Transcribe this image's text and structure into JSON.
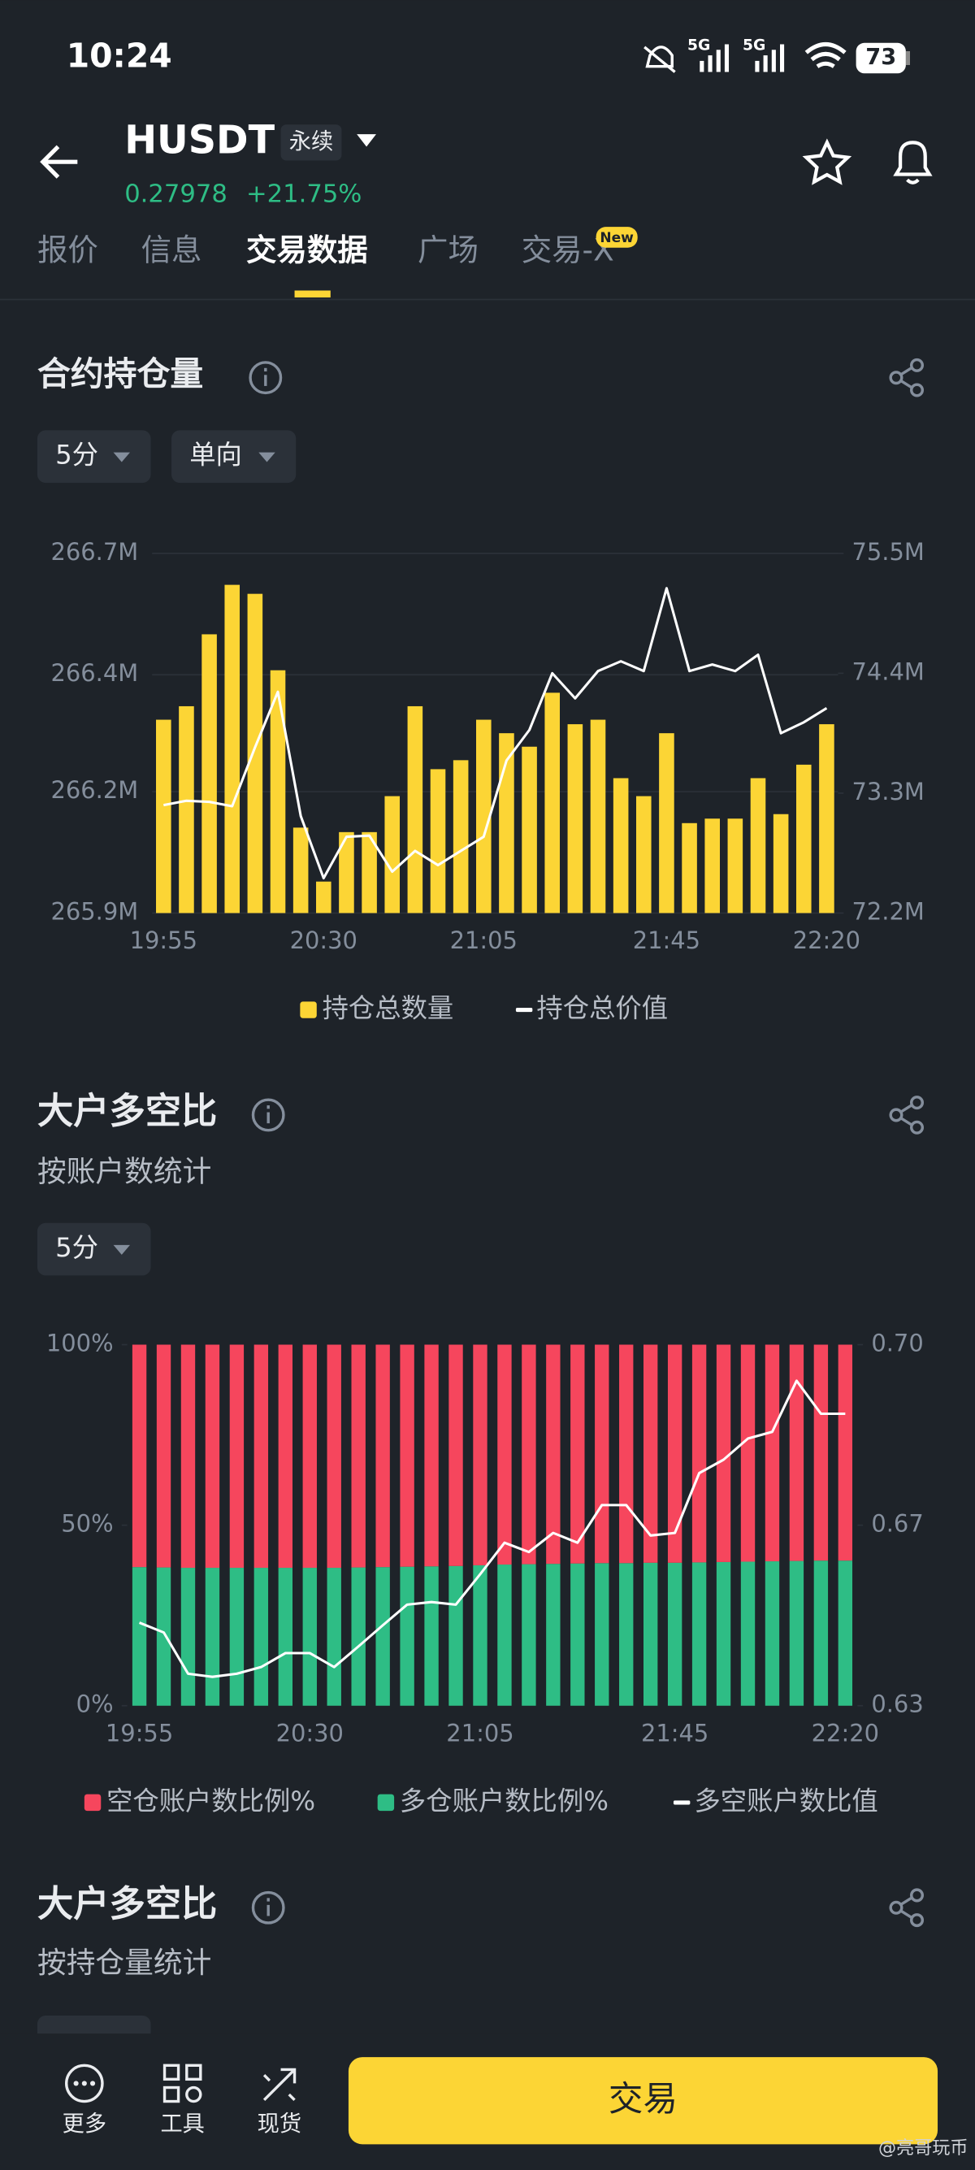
{
  "status_bar": {
    "time": "10:24",
    "network_1": "5G",
    "network_2": "5G",
    "battery": "73"
  },
  "header": {
    "symbol": "HUSDT",
    "contract_type": "永续",
    "price": "0.27978",
    "change": "+21.75%"
  },
  "tabs": [
    "报价",
    "信息",
    "交易数据",
    "广场",
    "交易-X"
  ],
  "tab_badge": "New",
  "open_interest": {
    "title": "合约持仓量",
    "filters": [
      "5分",
      "单向"
    ],
    "chart_data": {
      "type": "bar_line",
      "categories": [
        "19:55",
        null,
        null,
        null,
        null,
        null,
        null,
        "20:30",
        null,
        null,
        null,
        null,
        null,
        null,
        "21:05",
        null,
        null,
        null,
        null,
        null,
        null,
        null,
        "21:45",
        null,
        null,
        null,
        null,
        null,
        null,
        "22:20"
      ],
      "series": [
        {
          "name": "持仓总数量",
          "color": "#fcd535",
          "type": "bar",
          "values": [
            266.33,
            266.36,
            266.52,
            266.63,
            266.61,
            266.44,
            266.09,
            265.97,
            266.08,
            266.08,
            266.16,
            266.36,
            266.22,
            266.24,
            266.33,
            266.3,
            266.27,
            266.39,
            266.32,
            266.33,
            266.2,
            266.16,
            266.3,
            266.1,
            266.11,
            266.11,
            266.2,
            266.12,
            266.23,
            266.32
          ]
        },
        {
          "name": "持仓总价值",
          "color": "#ffffff",
          "type": "line",
          "axis": "y2",
          "values": [
            73.19,
            73.23,
            73.22,
            73.18,
            73.72,
            74.23,
            73.09,
            72.52,
            72.9,
            72.91,
            72.58,
            72.77,
            72.64,
            72.77,
            72.9,
            73.6,
            73.88,
            74.4,
            74.17,
            74.42,
            74.51,
            74.42,
            75.18,
            74.42,
            74.48,
            74.42,
            74.57,
            73.85,
            73.95,
            74.08
          ]
        }
      ],
      "ylim": [
        265.9,
        266.7
      ],
      "yticks": [
        {
          "value": 265.9,
          "label": "265.9M"
        },
        {
          "value": 266.17,
          "label": "266.2M"
        },
        {
          "value": 266.43,
          "label": "266.4M"
        },
        {
          "value": 266.7,
          "label": "266.7M"
        }
      ],
      "y2lim": [
        72.2,
        75.5
      ],
      "y2ticks": [
        {
          "value": 72.2,
          "label": "72.2M"
        },
        {
          "value": 73.3,
          "label": "73.3M"
        },
        {
          "value": 74.4,
          "label": "74.4M"
        },
        {
          "value": 75.5,
          "label": "75.5M"
        }
      ],
      "grid": true
    }
  },
  "long_short_accounts": {
    "title": "大户多空比",
    "subtitle": "按账户数统计",
    "filters": [
      "5分"
    ],
    "chart_data": {
      "type": "stacked_bar_line",
      "categories": [
        "19:55",
        null,
        null,
        null,
        null,
        null,
        null,
        "20:30",
        null,
        null,
        null,
        null,
        null,
        null,
        "21:05",
        null,
        null,
        null,
        null,
        null,
        null,
        null,
        "21:45",
        null,
        null,
        null,
        null,
        null,
        null,
        "22:20"
      ],
      "series": [
        {
          "name": "空仓账户数比例%",
          "color": "#f6465d",
          "type": "bar",
          "values": [
            61.6,
            61.7,
            61.8,
            61.8,
            61.8,
            61.8,
            61.8,
            61.8,
            61.8,
            61.7,
            61.6,
            61.5,
            61.4,
            61.3,
            61.1,
            60.9,
            60.8,
            60.7,
            60.6,
            60.5,
            60.5,
            60.4,
            60.4,
            60.3,
            60.2,
            60.1,
            60.0,
            59.9,
            59.8,
            59.8
          ]
        },
        {
          "name": "多仓账户数比例%",
          "color": "#2ebd85",
          "type": "bar",
          "values": [
            38.4,
            38.3,
            38.2,
            38.2,
            38.2,
            38.2,
            38.2,
            38.2,
            38.2,
            38.3,
            38.4,
            38.5,
            38.6,
            38.7,
            38.9,
            39.1,
            39.2,
            39.3,
            39.4,
            39.5,
            39.5,
            39.6,
            39.6,
            39.7,
            39.8,
            39.9,
            40.0,
            40.1,
            40.2,
            40.2
          ]
        },
        {
          "name": "多空账户数比值",
          "color": "#ffffff",
          "type": "line",
          "axis": "y2",
          "values": [
            0.6461,
            0.6442,
            0.6362,
            0.6356,
            0.6362,
            0.6375,
            0.6402,
            0.6402,
            0.6375,
            0.6415,
            0.6456,
            0.6496,
            0.6501,
            0.6496,
            0.6555,
            0.6616,
            0.6598,
            0.6635,
            0.6616,
            0.6689,
            0.6689,
            0.663,
            0.6635,
            0.6751,
            0.6777,
            0.6818,
            0.6831,
            0.693,
            0.6866,
            0.6866
          ]
        }
      ],
      "ylim": [
        0,
        100
      ],
      "yticks": [
        {
          "value": 0,
          "label": "0%"
        },
        {
          "value": 50,
          "label": "50%"
        },
        {
          "value": 100,
          "label": "100%"
        }
      ],
      "y2lim": [
        0.63,
        0.7
      ],
      "y2ticks": [
        0.63,
        {
          "value": 0.665,
          "label": "0.67"
        },
        {
          "value": 0.7,
          "label": "0.70"
        }
      ],
      "grid": false
    }
  },
  "long_short_positions": {
    "title": "大户多空比",
    "subtitle": "按持仓量统计"
  },
  "bottom_nav": [
    "更多",
    "工具",
    "现货"
  ],
  "trade_button": "交易",
  "watermark": "@亮哥玩币"
}
